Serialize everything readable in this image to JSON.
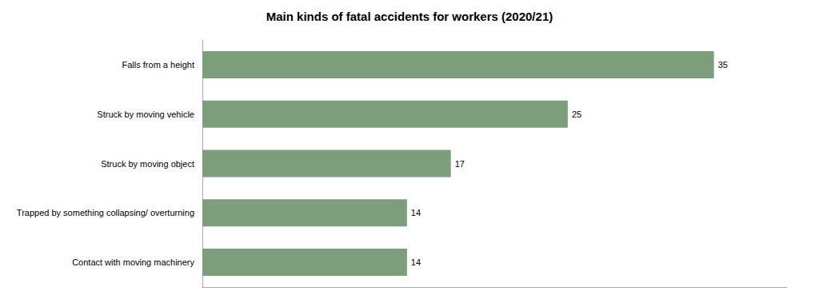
{
  "chart_data": {
    "type": "bar",
    "title": "Main kinds of fatal accidents for workers (2020/21)",
    "orientation": "horizontal",
    "categories": [
      "Contact with moving machinery",
      "Trapped by something collapsing/ overturning",
      "Struck by moving object",
      "Struck by moving vehicle",
      "Falls from a height"
    ],
    "values": [
      14,
      14,
      17,
      25,
      35
    ],
    "color": "#7d9e7a",
    "xlim": [
      0,
      40
    ],
    "data_labels": true,
    "tick_labels": "y",
    "grid": false
  }
}
